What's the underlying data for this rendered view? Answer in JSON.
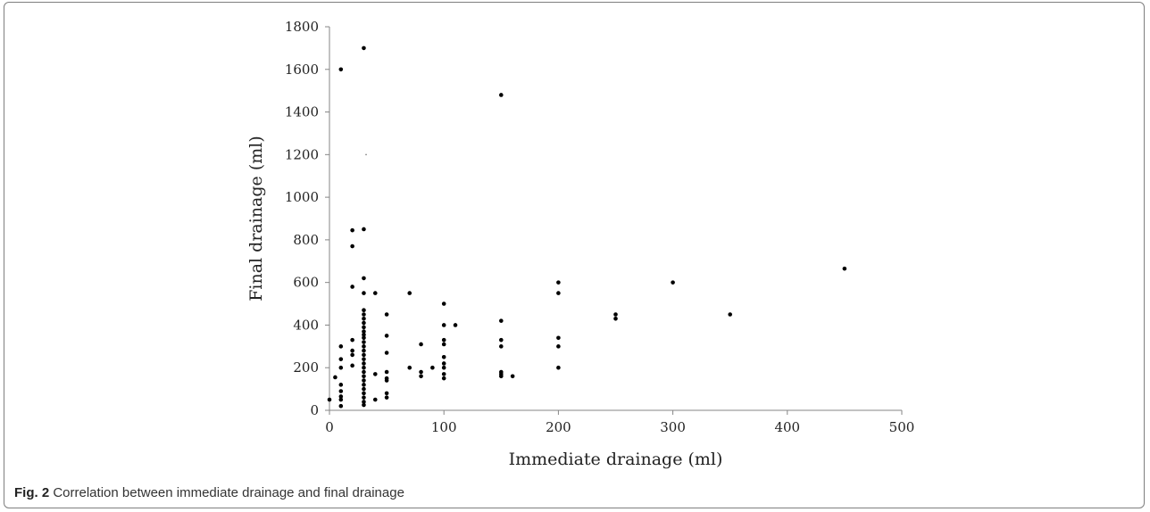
{
  "chart_data": {
    "type": "scatter",
    "title": "",
    "xlabel": "Immediate drainage (ml)",
    "ylabel": "Final drainage (ml)",
    "xlim": [
      0,
      500
    ],
    "ylim": [
      0,
      1800
    ],
    "xticks": [
      0,
      100,
      200,
      300,
      400,
      500
    ],
    "yticks": [
      0,
      200,
      400,
      600,
      800,
      1000,
      1200,
      1400,
      1600,
      1800
    ],
    "grid": false,
    "legend": "none",
    "marker_color": "#000000",
    "points": [
      [
        0,
        50
      ],
      [
        5,
        155
      ],
      [
        10,
        1600
      ],
      [
        10,
        300
      ],
      [
        10,
        240
      ],
      [
        10,
        200
      ],
      [
        10,
        120
      ],
      [
        10,
        90
      ],
      [
        10,
        65
      ],
      [
        10,
        50
      ],
      [
        10,
        20
      ],
      [
        20,
        845
      ],
      [
        20,
        770
      ],
      [
        20,
        580
      ],
      [
        20,
        330
      ],
      [
        20,
        280
      ],
      [
        20,
        260
      ],
      [
        20,
        210
      ],
      [
        30,
        1700
      ],
      [
        30,
        850
      ],
      [
        30,
        620
      ],
      [
        30,
        550
      ],
      [
        30,
        470
      ],
      [
        30,
        450
      ],
      [
        30,
        430
      ],
      [
        30,
        410
      ],
      [
        30,
        390
      ],
      [
        30,
        370
      ],
      [
        30,
        355
      ],
      [
        30,
        340
      ],
      [
        30,
        320
      ],
      [
        30,
        300
      ],
      [
        30,
        280
      ],
      [
        30,
        260
      ],
      [
        30,
        240
      ],
      [
        30,
        220
      ],
      [
        30,
        200
      ],
      [
        30,
        180
      ],
      [
        30,
        160
      ],
      [
        30,
        140
      ],
      [
        30,
        120
      ],
      [
        30,
        100
      ],
      [
        30,
        80
      ],
      [
        30,
        60
      ],
      [
        30,
        40
      ],
      [
        30,
        25
      ],
      [
        40,
        550
      ],
      [
        40,
        170
      ],
      [
        40,
        50
      ],
      [
        50,
        450
      ],
      [
        50,
        350
      ],
      [
        50,
        270
      ],
      [
        50,
        180
      ],
      [
        50,
        150
      ],
      [
        50,
        140
      ],
      [
        50,
        80
      ],
      [
        50,
        60
      ],
      [
        70,
        550
      ],
      [
        70,
        200
      ],
      [
        80,
        310
      ],
      [
        80,
        180
      ],
      [
        80,
        160
      ],
      [
        90,
        200
      ],
      [
        100,
        500
      ],
      [
        100,
        400
      ],
      [
        100,
        330
      ],
      [
        100,
        310
      ],
      [
        100,
        250
      ],
      [
        100,
        220
      ],
      [
        100,
        200
      ],
      [
        100,
        170
      ],
      [
        100,
        150
      ],
      [
        110,
        400
      ],
      [
        150,
        1480
      ],
      [
        150,
        420
      ],
      [
        150,
        330
      ],
      [
        150,
        300
      ],
      [
        150,
        180
      ],
      [
        150,
        170
      ],
      [
        150,
        160
      ],
      [
        160,
        160
      ],
      [
        200,
        600
      ],
      [
        200,
        550
      ],
      [
        200,
        340
      ],
      [
        200,
        300
      ],
      [
        200,
        200
      ],
      [
        250,
        450
      ],
      [
        250,
        430
      ],
      [
        300,
        600
      ],
      [
        350,
        450
      ],
      [
        450,
        665
      ]
    ],
    "faint_points": [
      [
        32,
        1200
      ]
    ]
  },
  "caption": {
    "figure_label": "Fig. 2",
    "text": "Correlation between immediate drainage and final drainage"
  }
}
